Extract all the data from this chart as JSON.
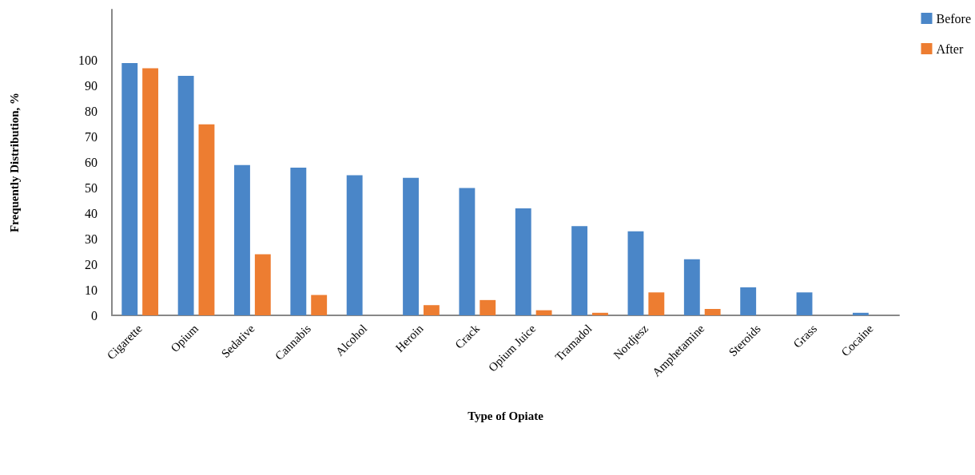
{
  "chart_data": {
    "type": "bar",
    "xlabel": "Type of Opiate",
    "ylabel": "Frequently Distribution, %",
    "categories": [
      "Cigarette",
      "Opium",
      "Sedative",
      "Cannabis",
      "Alcohol",
      "Heroin",
      "Crack",
      "Opium Juice",
      "Tramadol",
      "Nordjesz",
      "Amphetamine",
      "Steroids",
      "Grass",
      "Cocaine"
    ],
    "series": [
      {
        "name": "Before",
        "color": "#4a86c8",
        "values": [
          99,
          94,
          59,
          58,
          55,
          54,
          50,
          42,
          35,
          33,
          22,
          11,
          9,
          1
        ]
      },
      {
        "name": "After",
        "color": "#ed7d31",
        "values": [
          97,
          75,
          24,
          8,
          null,
          4,
          6,
          2,
          1,
          9,
          2.5,
          null,
          null,
          null
        ]
      }
    ],
    "ylim": [
      0,
      120
    ],
    "yticks": [
      0,
      10,
      20,
      30,
      40,
      50,
      60,
      70,
      80,
      90,
      100
    ],
    "grid": false,
    "legend": "top right"
  }
}
